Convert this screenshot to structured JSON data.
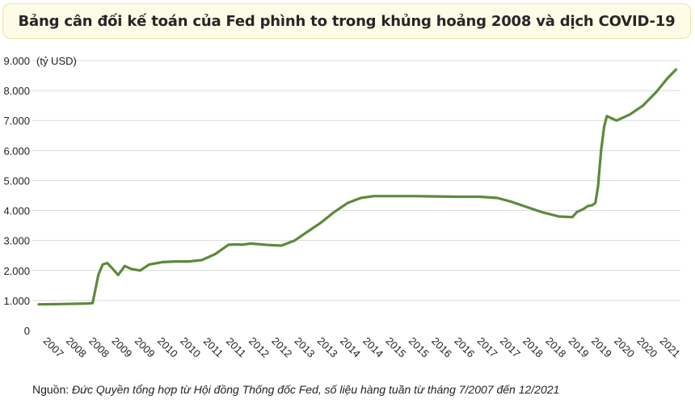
{
  "title": "Bảng cân đối kế toán của Fed phình to trong khủng hoảng 2008 và dịch COVID-19",
  "source": {
    "prefix": "Nguồn: ",
    "text": "Đức Quyền tổng hợp từ Hội đồng Thống đốc Fed, số liệu hàng tuần từ tháng 7/2007 đến 12/2021"
  },
  "chart_data": {
    "type": "line",
    "title": "Bảng cân đối kế toán của Fed phình to trong khủng hoảng 2008 và dịch COVID-19",
    "ylabel": "(tỷ USD)",
    "xlabel": "",
    "ylim": [
      0,
      9000
    ],
    "grid": true,
    "yticks": [
      "0",
      "1.000",
      "2.000",
      "3.000",
      "4.000",
      "5.000",
      "6.000",
      "7.000",
      "8.000",
      "9.000"
    ],
    "xticks": [
      "2007",
      "2008",
      "2008",
      "2009",
      "2009",
      "2010",
      "2010",
      "2011",
      "2011",
      "2012",
      "2012",
      "2013",
      "2013",
      "2014",
      "2014",
      "2015",
      "2015",
      "2016",
      "2016",
      "2017",
      "2017",
      "2018",
      "2018",
      "2019",
      "2019",
      "2020",
      "2020",
      "2021"
    ],
    "line_color": "#5c8a3a",
    "series": [
      {
        "x": [
          2007.5,
          2008.0,
          2008.6,
          2008.72,
          2008.85,
          2008.95,
          2009.05,
          2009.15,
          2009.3,
          2009.45,
          2009.6,
          2009.8,
          2010.0,
          2010.3,
          2010.6,
          2010.9,
          2011.2,
          2011.5,
          2011.8,
          2012.0,
          2012.1,
          2012.3,
          2012.7,
          2013.0,
          2013.3,
          2013.6,
          2013.9,
          2014.2,
          2014.5,
          2014.8,
          2015.1,
          2015.5,
          2016.0,
          2016.5,
          2017.0,
          2017.5,
          2017.9,
          2018.2,
          2018.5,
          2018.9,
          2019.3,
          2019.6,
          2019.7,
          2019.85,
          2019.95,
          2020.05,
          2020.12,
          2020.18,
          2020.25,
          2020.32,
          2020.38,
          2020.45,
          2020.6,
          2020.9,
          2021.2,
          2021.5,
          2021.75,
          2021.95
        ],
        "y": [
          870,
          880,
          900,
          910,
          1850,
          2200,
          2250,
          2100,
          1850,
          2150,
          2050,
          2000,
          2200,
          2280,
          2300,
          2300,
          2350,
          2550,
          2860,
          2870,
          2860,
          2900,
          2850,
          2830,
          3000,
          3300,
          3600,
          3950,
          4250,
          4420,
          4480,
          4480,
          4480,
          4470,
          4460,
          4460,
          4420,
          4300,
          4150,
          3950,
          3800,
          3780,
          3950,
          4050,
          4150,
          4180,
          4250,
          4800,
          6000,
          6800,
          7150,
          7100,
          7000,
          7200,
          7500,
          7950,
          8400,
          8700
        ]
      }
    ]
  }
}
